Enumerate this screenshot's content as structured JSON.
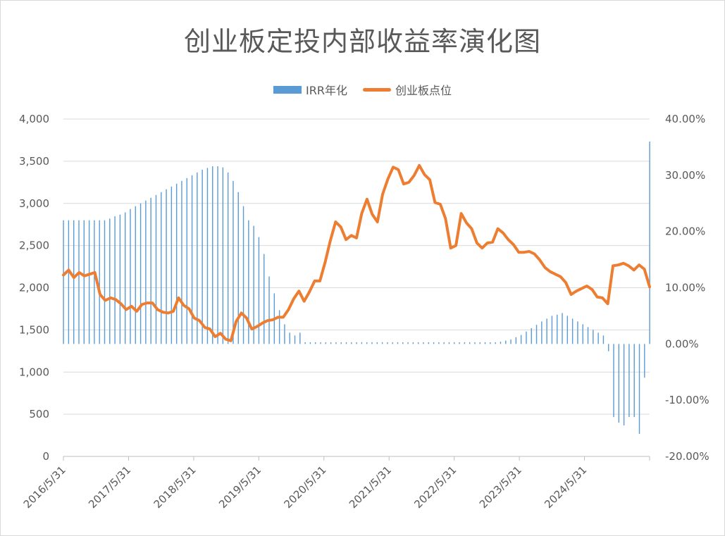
{
  "chart_data": {
    "type": "bar+line",
    "title": "创业板定投内部收益率演化图",
    "legend": [
      "IRR年化",
      "创业板点位"
    ],
    "legend_position": "top",
    "grid": "horizontal",
    "left_axis": {
      "ylim": [
        0,
        4000
      ],
      "ticks": [
        "0",
        "500",
        "1,000",
        "1,500",
        "2,000",
        "2,500",
        "3,000",
        "3,500",
        "4,000"
      ]
    },
    "right_axis": {
      "ylim": [
        -0.2,
        0.4
      ],
      "ticks": [
        "-20.00%",
        "-10.00%",
        "0.00%",
        "10.00%",
        "20.00%",
        "30.00%",
        "40.00%"
      ]
    },
    "x_tick_labels": [
      "2016/5/31",
      "2017/5/31",
      "2018/5/31",
      "2019/5/31",
      "2020/5/31",
      "2021/5/31",
      "2022/5/31",
      "2023/5/31",
      "2024/5/31"
    ],
    "x_start": "2016/5/31",
    "x_end": "2025/5/31",
    "series": [
      {
        "name": "IRR年化",
        "type": "bar",
        "color": "#5b9bd5",
        "axis": "right",
        "values": [
          0.22,
          0.22,
          0.22,
          0.22,
          0.22,
          0.22,
          0.22,
          0.22,
          0.22,
          0.223,
          0.227,
          0.23,
          0.234,
          0.24,
          0.245,
          0.25,
          0.255,
          0.26,
          0.265,
          0.27,
          0.275,
          0.28,
          0.285,
          0.29,
          0.295,
          0.3,
          0.305,
          0.31,
          0.313,
          0.316,
          0.316,
          0.314,
          0.305,
          0.29,
          0.27,
          0.245,
          0.22,
          0.21,
          0.19,
          0.16,
          0.12,
          0.09,
          0.06,
          0.035,
          0.02,
          0.015,
          0.02,
          0.003,
          0.003,
          0.003,
          0.003,
          0.003,
          0.003,
          0.003,
          0.003,
          0.003,
          0.003,
          0.003,
          0.003,
          0.003,
          0.003,
          0.003,
          0.003,
          0.003,
          0.003,
          0.003,
          0.003,
          0.003,
          0.003,
          0.003,
          0.003,
          0.003,
          0.003,
          0.003,
          0.003,
          0.003,
          0.003,
          0.003,
          0.003,
          0.003,
          0.003,
          0.003,
          0.003,
          0.003,
          0.003,
          0.004,
          0.006,
          0.008,
          0.012,
          0.016,
          0.022,
          0.028,
          0.034,
          0.04,
          0.045,
          0.05,
          0.052,
          0.055,
          0.05,
          0.045,
          0.04,
          0.035,
          0.03,
          0.025,
          0.02,
          0.015,
          -0.013,
          -0.13,
          -0.14,
          -0.145,
          -0.13,
          -0.13,
          -0.16,
          -0.06,
          0.36
        ]
      },
      {
        "name": "创业板点位",
        "type": "line",
        "color": "#ed7d31",
        "axis": "left",
        "values": [
          2150,
          2210,
          2120,
          2180,
          2140,
          2160,
          2180,
          1920,
          1850,
          1880,
          1860,
          1810,
          1740,
          1780,
          1720,
          1800,
          1820,
          1820,
          1740,
          1710,
          1700,
          1720,
          1880,
          1790,
          1750,
          1640,
          1610,
          1530,
          1510,
          1420,
          1460,
          1390,
          1370,
          1600,
          1700,
          1640,
          1510,
          1540,
          1580,
          1610,
          1620,
          1650,
          1650,
          1740,
          1870,
          1960,
          1840,
          1950,
          2080,
          2080,
          2300,
          2560,
          2780,
          2720,
          2570,
          2620,
          2590,
          2880,
          3050,
          2870,
          2780,
          3110,
          3290,
          3430,
          3400,
          3230,
          3250,
          3330,
          3450,
          3340,
          3280,
          3010,
          2990,
          2820,
          2470,
          2500,
          2880,
          2770,
          2700,
          2530,
          2470,
          2530,
          2540,
          2700,
          2650,
          2570,
          2510,
          2420,
          2420,
          2430,
          2400,
          2330,
          2240,
          2190,
          2160,
          2130,
          2060,
          1920,
          1960,
          1990,
          2020,
          1980,
          1890,
          1880,
          1810,
          2260,
          2270,
          2290,
          2260,
          2210,
          2270,
          2220,
          2010
        ]
      }
    ]
  }
}
